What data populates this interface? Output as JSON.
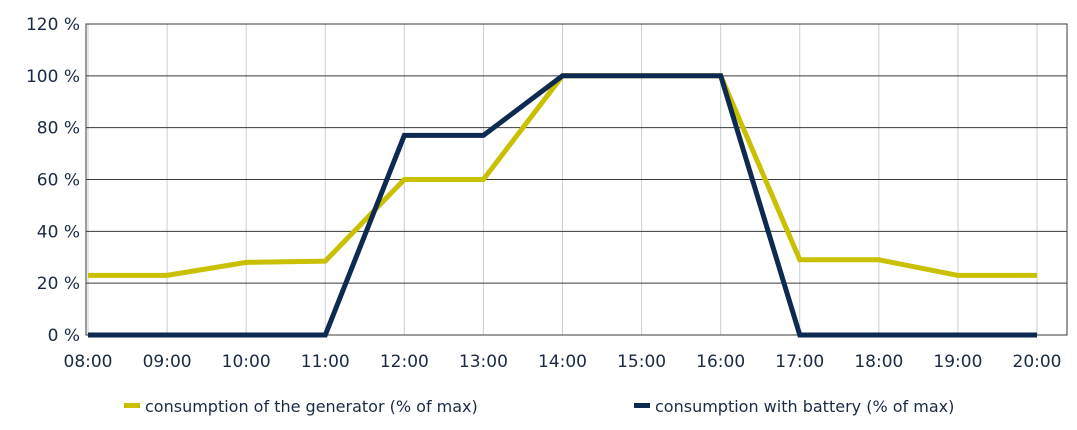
{
  "chart_data": {
    "type": "line",
    "title": "",
    "xlabel": "",
    "ylabel": "",
    "categories": [
      "08:00",
      "09:00",
      "10:00",
      "11:00",
      "12:00",
      "13:00",
      "14:00",
      "15:00",
      "16:00",
      "17:00",
      "18:00",
      "19:00",
      "20:00"
    ],
    "y_tick_labels": [
      "0 %",
      "20 %",
      "40 %",
      "60 %",
      "80 %",
      "100 %",
      "120 %"
    ],
    "y_ticks": [
      0,
      20,
      40,
      60,
      80,
      100,
      120
    ],
    "ylim": [
      0,
      120
    ],
    "grid": true,
    "legend_position": "bottom",
    "series": [
      {
        "name": "consumption of the generator (% of max)",
        "color": "#c8c000",
        "values": [
          23,
          23,
          28,
          28.5,
          60,
          60,
          100,
          100,
          100,
          29,
          29,
          23,
          23
        ]
      },
      {
        "name": "consumption with battery (% of max)",
        "color": "#0e2a50",
        "values": [
          0,
          0,
          0,
          0,
          77,
          77,
          100,
          100,
          100,
          0,
          0,
          0,
          0
        ]
      }
    ]
  }
}
